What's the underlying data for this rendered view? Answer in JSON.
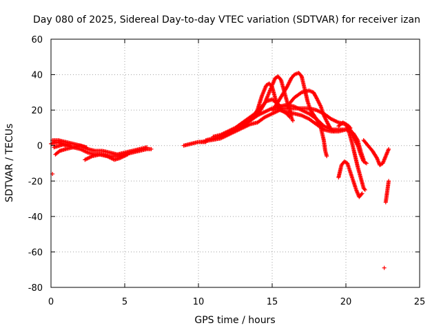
{
  "chart_data": {
    "type": "scatter",
    "title": "Day 080 of 2025, Sidereal Day-to-day VTEC variation (SDTVAR) for receiver izan",
    "xlabel": "GPS time / hours",
    "ylabel": "SDTVAR / TECUs",
    "xlim": [
      0,
      25
    ],
    "ylim": [
      -80,
      60
    ],
    "xticks": [
      0,
      5,
      10,
      15,
      20,
      25
    ],
    "yticks": [
      -80,
      -60,
      -40,
      -20,
      0,
      20,
      40,
      60
    ],
    "xtick_labels": [
      "0",
      "5",
      "10",
      "15",
      "20",
      "25"
    ],
    "ytick_labels": [
      "-80",
      "-60",
      "-40",
      "-20",
      "0",
      "20",
      "40",
      "60"
    ],
    "grid": true,
    "marker": "+",
    "series_color": "#ff0000",
    "tracks": [
      [
        [
          0.0,
          1
        ],
        [
          0.5,
          2
        ],
        [
          1.0,
          0
        ],
        [
          1.5,
          -1
        ],
        [
          2.0,
          -2
        ],
        [
          2.5,
          -4
        ],
        [
          3.0,
          -5
        ],
        [
          3.5,
          -5
        ],
        [
          4.0,
          -6
        ],
        [
          4.5,
          -6
        ],
        [
          5.0,
          -5
        ],
        [
          5.5,
          -4
        ],
        [
          6.0,
          -3
        ],
        [
          6.5,
          -2
        ],
        [
          6.8,
          -2
        ]
      ],
      [
        [
          0.1,
          3
        ],
        [
          0.5,
          3
        ],
        [
          1.0,
          2
        ],
        [
          1.5,
          1
        ],
        [
          2.0,
          0
        ],
        [
          2.4,
          -1
        ]
      ],
      [
        [
          0.6,
          -3
        ],
        [
          1.0,
          -2
        ],
        [
          1.5,
          -1
        ],
        [
          2.0,
          0
        ],
        [
          2.5,
          -2
        ],
        [
          3.0,
          -3
        ],
        [
          3.5,
          -3
        ],
        [
          4.0,
          -4
        ],
        [
          4.5,
          -5
        ],
        [
          5.0,
          -4
        ],
        [
          5.5,
          -3
        ],
        [
          6.0,
          -2
        ],
        [
          6.5,
          -1
        ]
      ],
      [
        [
          0.2,
          -1
        ],
        [
          0.6,
          0
        ],
        [
          1.0,
          1
        ],
        [
          1.3,
          0
        ]
      ],
      [
        [
          2.3,
          -8
        ],
        [
          2.8,
          -6
        ],
        [
          3.3,
          -5
        ],
        [
          3.8,
          -6
        ],
        [
          4.3,
          -8
        ],
        [
          4.7,
          -7
        ],
        [
          5.2,
          -5
        ]
      ],
      [
        [
          0.3,
          -5
        ],
        [
          0.6,
          -3
        ]
      ],
      [
        [
          9.0,
          0
        ],
        [
          9.5,
          1
        ],
        [
          10.0,
          2
        ],
        [
          10.5,
          2
        ]
      ],
      [
        [
          10.2,
          2
        ],
        [
          10.8,
          3
        ],
        [
          11.5,
          4
        ],
        [
          12.0,
          6
        ],
        [
          12.5,
          8
        ],
        [
          13.0,
          10
        ],
        [
          13.5,
          12
        ],
        [
          14.0,
          13
        ],
        [
          14.5,
          16
        ],
        [
          15.0,
          18
        ],
        [
          15.5,
          20
        ],
        [
          16.0,
          19
        ],
        [
          16.5,
          18
        ],
        [
          17.0,
          17
        ],
        [
          17.5,
          15
        ],
        [
          18.0,
          12
        ],
        [
          18.5,
          9
        ],
        [
          19.0,
          8
        ],
        [
          19.5,
          8
        ],
        [
          20.0,
          9
        ],
        [
          20.3,
          10
        ]
      ],
      [
        [
          10.5,
          3
        ],
        [
          11.0,
          4
        ],
        [
          11.5,
          5
        ],
        [
          12.0,
          7
        ],
        [
          12.5,
          9
        ],
        [
          13.0,
          11
        ],
        [
          13.5,
          14
        ],
        [
          14.0,
          17
        ],
        [
          14.5,
          19
        ],
        [
          15.0,
          21
        ],
        [
          15.5,
          22
        ],
        [
          16.0,
          23
        ],
        [
          16.5,
          22
        ],
        [
          17.0,
          20
        ],
        [
          17.5,
          18
        ],
        [
          18.0,
          15
        ],
        [
          18.5,
          11
        ],
        [
          19.0,
          9
        ],
        [
          19.5,
          9
        ],
        [
          20.0,
          9
        ],
        [
          20.5,
          7
        ],
        [
          20.8,
          3
        ],
        [
          21.0,
          -3
        ],
        [
          21.2,
          -8
        ]
      ],
      [
        [
          11.0,
          5
        ],
        [
          11.5,
          6
        ],
        [
          12.0,
          8
        ],
        [
          12.5,
          10
        ],
        [
          13.0,
          13
        ],
        [
          13.5,
          16
        ],
        [
          14.0,
          19
        ],
        [
          14.3,
          22
        ],
        [
          14.6,
          25
        ],
        [
          15.0,
          26
        ],
        [
          15.3,
          24
        ],
        [
          15.6,
          22
        ]
      ],
      [
        [
          13.0,
          12
        ],
        [
          13.5,
          14
        ],
        [
          14.0,
          20
        ],
        [
          14.3,
          28
        ],
        [
          14.6,
          34
        ],
        [
          14.8,
          35
        ],
        [
          15.0,
          33
        ],
        [
          15.2,
          27
        ],
        [
          15.4,
          22
        ],
        [
          15.6,
          20
        ],
        [
          16.0,
          18
        ],
        [
          16.2,
          16
        ]
      ],
      [
        [
          14.0,
          17
        ],
        [
          14.5,
          24
        ],
        [
          15.0,
          34
        ],
        [
          15.2,
          38
        ],
        [
          15.4,
          39
        ],
        [
          15.6,
          37
        ],
        [
          15.8,
          31
        ],
        [
          16.0,
          25
        ],
        [
          16.2,
          20
        ],
        [
          16.3,
          16
        ],
        [
          16.4,
          14
        ]
      ],
      [
        [
          15.2,
          22
        ],
        [
          15.5,
          26
        ],
        [
          16.0,
          33
        ],
        [
          16.3,
          38
        ],
        [
          16.5,
          40
        ],
        [
          16.8,
          41
        ],
        [
          17.0,
          39
        ],
        [
          17.2,
          32
        ],
        [
          17.4,
          25
        ],
        [
          17.6,
          20
        ],
        [
          18.0,
          15
        ],
        [
          18.3,
          10
        ],
        [
          18.5,
          3
        ],
        [
          18.6,
          -3
        ],
        [
          18.7,
          -6
        ]
      ],
      [
        [
          16.0,
          22
        ],
        [
          16.5,
          27
        ],
        [
          17.0,
          30
        ],
        [
          17.5,
          31
        ],
        [
          17.8,
          30
        ],
        [
          18.0,
          27
        ],
        [
          18.3,
          22
        ],
        [
          18.5,
          17
        ],
        [
          18.8,
          12
        ],
        [
          19.0,
          9
        ],
        [
          19.2,
          8
        ]
      ],
      [
        [
          15.0,
          20
        ],
        [
          15.5,
          21
        ],
        [
          16.0,
          21
        ],
        [
          16.5,
          21
        ],
        [
          17.0,
          21
        ],
        [
          17.5,
          21
        ],
        [
          18.0,
          20
        ],
        [
          18.5,
          18
        ],
        [
          19.0,
          15
        ],
        [
          19.5,
          13
        ],
        [
          20.0,
          12
        ],
        [
          20.2,
          8
        ],
        [
          20.4,
          2
        ],
        [
          20.6,
          -5
        ],
        [
          20.8,
          -12
        ],
        [
          21.0,
          -18
        ],
        [
          21.2,
          -24
        ],
        [
          21.3,
          -25
        ]
      ],
      [
        [
          19.5,
          -18
        ],
        [
          19.7,
          -11
        ],
        [
          19.9,
          -9
        ],
        [
          20.1,
          -10
        ],
        [
          20.3,
          -15
        ],
        [
          20.5,
          -20
        ],
        [
          20.7,
          -25
        ],
        [
          20.9,
          -29
        ],
        [
          21.1,
          -27
        ]
      ],
      [
        [
          19.5,
          11
        ],
        [
          19.8,
          13
        ],
        [
          20.2,
          11
        ],
        [
          20.5,
          5
        ],
        [
          20.8,
          0
        ],
        [
          21.0,
          -5
        ],
        [
          21.2,
          -9
        ],
        [
          21.4,
          -10
        ]
      ],
      [
        [
          21.2,
          3
        ],
        [
          21.5,
          0
        ],
        [
          21.8,
          -3
        ],
        [
          22.1,
          -7
        ],
        [
          22.3,
          -11
        ],
        [
          22.5,
          -10
        ],
        [
          22.7,
          -6
        ],
        [
          22.9,
          -2
        ]
      ],
      [
        [
          22.7,
          -32
        ],
        [
          22.8,
          -26
        ],
        [
          22.9,
          -20
        ]
      ],
      [
        [
          0.1,
          -16
        ],
        [
          22.6,
          -69
        ]
      ]
    ]
  }
}
